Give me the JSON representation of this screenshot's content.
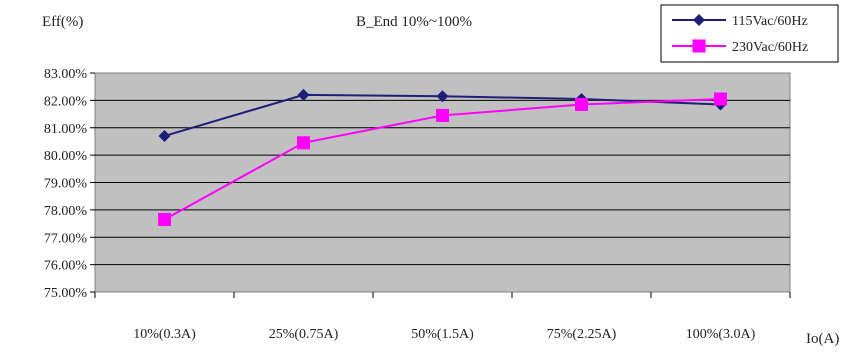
{
  "chart_data": {
    "type": "line",
    "title": "B_End 10%~100%",
    "ylabel": "Eff(%)",
    "xlabel": "Io(A)",
    "categories": [
      "10%(0.3A)",
      "25%(0.75A)",
      "50%(1.5A)",
      "75%(2.25A)",
      "100%(3.0A)"
    ],
    "ylim": [
      75,
      83
    ],
    "ytick_step": 1,
    "ytick_labels": [
      "75.00%",
      "76.00%",
      "77.00%",
      "78.00%",
      "79.00%",
      "80.00%",
      "81.00%",
      "82.00%",
      "83.00%"
    ],
    "grid": true,
    "plot_background": "#c0c0c0",
    "legend_position": "top-right",
    "series": [
      {
        "name": "115Vac/60Hz",
        "color": "#1f1f7a",
        "marker": "diamond",
        "values": [
          80.7,
          82.2,
          82.15,
          82.05,
          81.85
        ]
      },
      {
        "name": "230Vac/60Hz",
        "color": "#ff00ff",
        "marker": "square",
        "values": [
          77.65,
          80.45,
          81.45,
          81.85,
          82.05
        ]
      }
    ]
  }
}
